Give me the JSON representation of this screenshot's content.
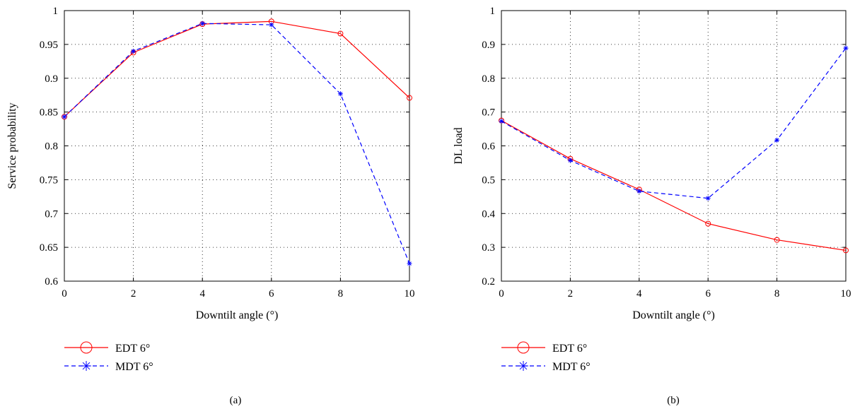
{
  "panels": [
    {
      "caption": "(a)",
      "legend": [
        {
          "label": "EDT 6°",
          "series": 0
        },
        {
          "label": "MDT 6°",
          "series": 1
        }
      ]
    },
    {
      "caption": "(b)",
      "legend": [
        {
          "label": "EDT 6°",
          "series": 0
        },
        {
          "label": "MDT 6°",
          "series": 1
        }
      ]
    }
  ],
  "chart_data": [
    {
      "type": "line",
      "title": "",
      "xlabel": "Downtilt angle (°)",
      "ylabel": "Service probability",
      "x": [
        0,
        2,
        4,
        6,
        8,
        10
      ],
      "xlim": [
        0,
        10
      ],
      "ylim": [
        0.6,
        1.0
      ],
      "xticks": [
        0,
        2,
        4,
        6,
        8,
        10
      ],
      "yticks": [
        0.6,
        0.65,
        0.7,
        0.75,
        0.8,
        0.85,
        0.9,
        0.95,
        1.0
      ],
      "yticklabels": [
        "0.6",
        "0.65",
        "0.7",
        "0.75",
        "0.8",
        "0.85",
        "0.9",
        "0.95",
        "1"
      ],
      "grid": true,
      "legend_position": "below",
      "series": [
        {
          "name": "EDT 6°",
          "color": "#ff0000",
          "line": "solid",
          "marker": "circle",
          "values": [
            0.843,
            0.938,
            0.98,
            0.984,
            0.966,
            0.871
          ]
        },
        {
          "name": "MDT 6°",
          "color": "#0000ff",
          "line": "dashed",
          "marker": "star",
          "values": [
            0.843,
            0.94,
            0.981,
            0.979,
            0.877,
            0.626
          ]
        }
      ]
    },
    {
      "type": "line",
      "title": "",
      "xlabel": "Downtilt angle (°)",
      "ylabel": "DL load",
      "x": [
        0,
        2,
        4,
        6,
        8,
        10
      ],
      "xlim": [
        0,
        10
      ],
      "ylim": [
        0.2,
        1.0
      ],
      "xticks": [
        0,
        2,
        4,
        6,
        8,
        10
      ],
      "yticks": [
        0.2,
        0.3,
        0.4,
        0.5,
        0.6,
        0.7,
        0.8,
        0.9,
        1.0
      ],
      "yticklabels": [
        "0.2",
        "0.3",
        "0.4",
        "0.5",
        "0.6",
        "0.7",
        "0.8",
        "0.9",
        "1"
      ],
      "grid": true,
      "legend_position": "below",
      "series": [
        {
          "name": "EDT 6°",
          "color": "#ff0000",
          "line": "solid",
          "marker": "circle",
          "values": [
            0.675,
            0.562,
            0.471,
            0.37,
            0.322,
            0.291
          ]
        },
        {
          "name": "MDT 6°",
          "color": "#0000ff",
          "line": "dashed",
          "marker": "star",
          "values": [
            0.673,
            0.557,
            0.466,
            0.445,
            0.617,
            0.889
          ]
        }
      ]
    }
  ]
}
